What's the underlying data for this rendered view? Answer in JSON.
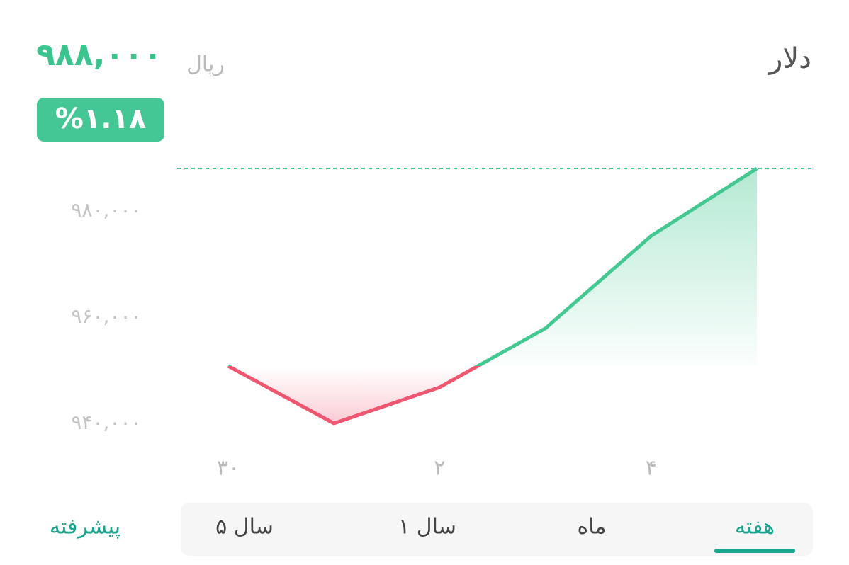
{
  "header": {
    "title": "دلار",
    "price": "۹۸۸,۰۰۰",
    "currency": "ریال",
    "change": "%۱.۱۸"
  },
  "chart_data": {
    "type": "line",
    "categories": [
      "۳۰",
      null,
      "۲",
      null,
      "۴",
      null
    ],
    "values": [
      950800,
      940000,
      946800,
      957900,
      975300,
      988000
    ],
    "colors": {
      "up": "#44c892",
      "down": "#ef5770"
    },
    "ylim": [
      940000,
      988000
    ],
    "yticks": [
      {
        "value": 980000,
        "label": "۹۸۰,۰۰۰"
      },
      {
        "value": 960000,
        "label": "۹۶۰,۰۰۰"
      },
      {
        "value": 940000,
        "label": "۹۴۰,۰۰۰"
      }
    ],
    "last_value_line": true
  },
  "tabs": {
    "items": [
      "هفته",
      "ماه",
      "۱ سال",
      "۵ سال"
    ],
    "selected": 0,
    "advanced": "پیشرفته"
  }
}
